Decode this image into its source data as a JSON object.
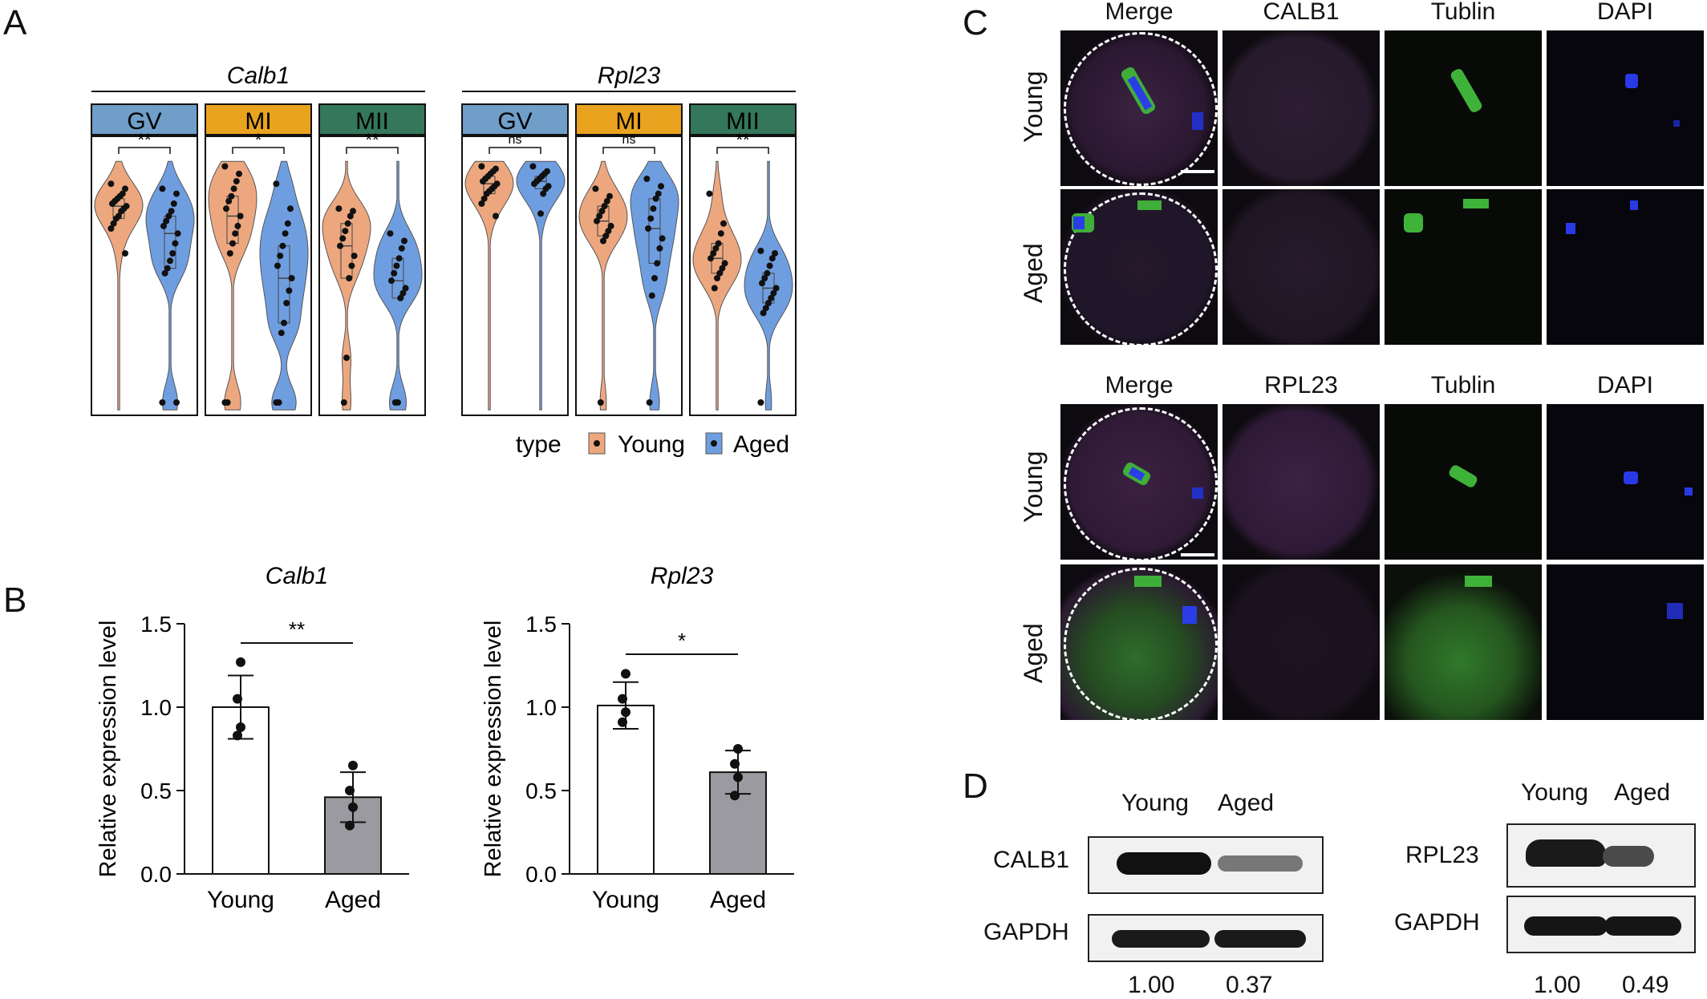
{
  "panels": {
    "a": "A",
    "b": "B",
    "c": "C",
    "d": "D"
  },
  "panel_a": {
    "genes": [
      {
        "name": "Calb1",
        "groups": [
          {
            "stage": "GV",
            "color": "#6f9ec9",
            "sig": "**",
            "young": [
              0.88,
              0.86,
              0.84,
              0.83,
              0.82,
              0.81,
              0.8,
              0.79,
              0.78,
              0.77,
              0.75,
              0.74,
              0.72,
              0.7,
              0.6
            ],
            "aged": [
              0.86,
              0.84,
              0.8,
              0.77,
              0.75,
              0.73,
              0.71,
              0.68,
              0.64,
              0.6,
              0.57,
              0.54,
              0.52,
              0.0,
              0.0
            ]
          },
          {
            "stage": "MI",
            "color": "#eaa31f",
            "sig": "*",
            "young": [
              0.95,
              0.92,
              0.89,
              0.86,
              0.83,
              0.81,
              0.78,
              0.75,
              0.71,
              0.68,
              0.64,
              0.6,
              0.0,
              0.0
            ],
            "aged": [
              0.88,
              0.78,
              0.72,
              0.68,
              0.63,
              0.59,
              0.55,
              0.5,
              0.45,
              0.4,
              0.32,
              0.28,
              0.0,
              0.0
            ]
          },
          {
            "stage": "MII",
            "color": "#34775a",
            "sig": "**",
            "young": [
              0.78,
              0.77,
              0.75,
              0.72,
              0.69,
              0.66,
              0.63,
              0.59,
              0.55,
              0.5,
              0.18,
              0.0
            ],
            "aged": [
              0.68,
              0.65,
              0.62,
              0.58,
              0.55,
              0.52,
              0.49,
              0.46,
              0.44,
              0.42,
              0.0,
              0.0
            ]
          }
        ]
      },
      {
        "name": "Rpl23",
        "groups": [
          {
            "stage": "GV",
            "color": "#6f9ec9",
            "sig": "ns",
            "young": [
              0.95,
              0.94,
              0.93,
              0.92,
              0.91,
              0.9,
              0.89,
              0.88,
              0.87,
              0.86,
              0.85,
              0.84,
              0.82,
              0.8,
              0.75
            ],
            "aged": [
              0.95,
              0.93,
              0.92,
              0.91,
              0.9,
              0.89,
              0.88,
              0.87,
              0.86,
              0.84,
              0.76
            ]
          },
          {
            "stage": "MI",
            "color": "#eaa31f",
            "sig": "ns",
            "young": [
              0.86,
              0.83,
              0.81,
              0.79,
              0.77,
              0.75,
              0.73,
              0.71,
              0.69,
              0.67,
              0.65,
              0.0
            ],
            "aged": [
              0.9,
              0.87,
              0.84,
              0.82,
              0.78,
              0.74,
              0.7,
              0.66,
              0.62,
              0.56,
              0.5,
              0.43,
              0.0
            ]
          },
          {
            "stage": "MII",
            "color": "#34775a",
            "sig": "**",
            "young": [
              0.84,
              0.72,
              0.68,
              0.64,
              0.62,
              0.6,
              0.58,
              0.56,
              0.54,
              0.52,
              0.5,
              0.46
            ],
            "aged": [
              0.61,
              0.6,
              0.58,
              0.55,
              0.52,
              0.5,
              0.48,
              0.46,
              0.44,
              0.42,
              0.4,
              0.38,
              0.36,
              0.0
            ]
          }
        ]
      }
    ],
    "legend": {
      "title": "type",
      "young": "Young",
      "aged": "Aged"
    },
    "colors": {
      "young": "#eda77f",
      "aged": "#6f9ee0"
    }
  },
  "chart_data": [
    {
      "type": "bar",
      "title": "Calb1",
      "ylabel": "Relative expression level",
      "categories": [
        "Young",
        "Aged"
      ],
      "values": [
        1.0,
        0.46
      ],
      "sd": [
        0.19,
        0.15
      ],
      "points": [
        [
          1.27,
          1.05,
          0.88,
          0.83
        ],
        [
          0.65,
          0.5,
          0.4,
          0.29
        ]
      ],
      "ylim": [
        0,
        1.5
      ],
      "yticks": [
        "0.0",
        "0.5",
        "1.0",
        "1.5"
      ],
      "sig": "**",
      "bar_colors": [
        "#ffffff",
        "#9a9aa0"
      ]
    },
    {
      "type": "bar",
      "title": "Rpl23",
      "ylabel": "Relative expression level",
      "categories": [
        "Young",
        "Aged"
      ],
      "values": [
        1.01,
        0.61
      ],
      "sd": [
        0.14,
        0.13
      ],
      "points": [
        [
          1.2,
          1.05,
          0.97,
          0.91
        ],
        [
          0.75,
          0.66,
          0.58,
          0.47
        ]
      ],
      "ylim": [
        0,
        1.5
      ],
      "yticks": [
        "0.0",
        "0.5",
        "1.0",
        "1.5"
      ],
      "sig": "*",
      "bar_colors": [
        "#ffffff",
        "#9a9aa0"
      ]
    }
  ],
  "panel_c": {
    "set1": {
      "columns": [
        "Merge",
        "CALB1",
        "Tublin",
        "DAPI"
      ],
      "rows": [
        "Young",
        "Aged"
      ]
    },
    "set2": {
      "columns": [
        "Merge",
        "RPL23",
        "Tublin",
        "DAPI"
      ],
      "rows": [
        "Young",
        "Aged"
      ]
    }
  },
  "panel_d": {
    "left": {
      "columns": [
        "Young",
        "Aged"
      ],
      "rows": [
        "CALB1",
        "GAPDH"
      ],
      "ratios": [
        "1.00",
        "0.37"
      ]
    },
    "right": {
      "columns": [
        "Young",
        "Aged"
      ],
      "rows": [
        "RPL23",
        "GAPDH"
      ],
      "ratios": [
        "1.00",
        "0.49"
      ]
    }
  }
}
